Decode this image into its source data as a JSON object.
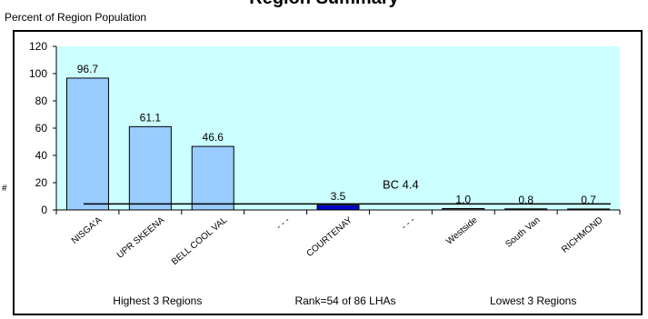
{
  "chart_data": {
    "type": "bar",
    "title": "Region Summary",
    "ylabel": "Percent of Region Population",
    "side_mark": "#",
    "ylim": [
      0,
      120
    ],
    "yticks": [
      0,
      20,
      40,
      60,
      80,
      100,
      120
    ],
    "categories": [
      "NISGA'A",
      "UPR SKEENA",
      "BELL COOL VAL",
      "- - -",
      "COURTENAY",
      "- - -",
      "Westside",
      "South Van",
      "RICHMOND"
    ],
    "values": [
      96.7,
      61.1,
      46.6,
      null,
      3.5,
      null,
      1.0,
      0.8,
      0.7
    ],
    "value_labels": [
      "96.7",
      "61.1",
      "46.6",
      "",
      "3.5",
      "",
      "1.0",
      "0.8",
      "0.7"
    ],
    "highlight_index": 4,
    "reference_line": {
      "label": "BC 4.4",
      "value": 4.4
    },
    "group_labels": [
      "Highest 3 Regions",
      "Rank=54 of 86 LHAs",
      "Lowest 3 Regions"
    ],
    "colors": {
      "plot_bg": "#ccffff",
      "bar": "#99ccff",
      "highlight_bar": "#0000cc",
      "low_bar": "#666666",
      "axis": "#000000"
    },
    "grid": false
  }
}
